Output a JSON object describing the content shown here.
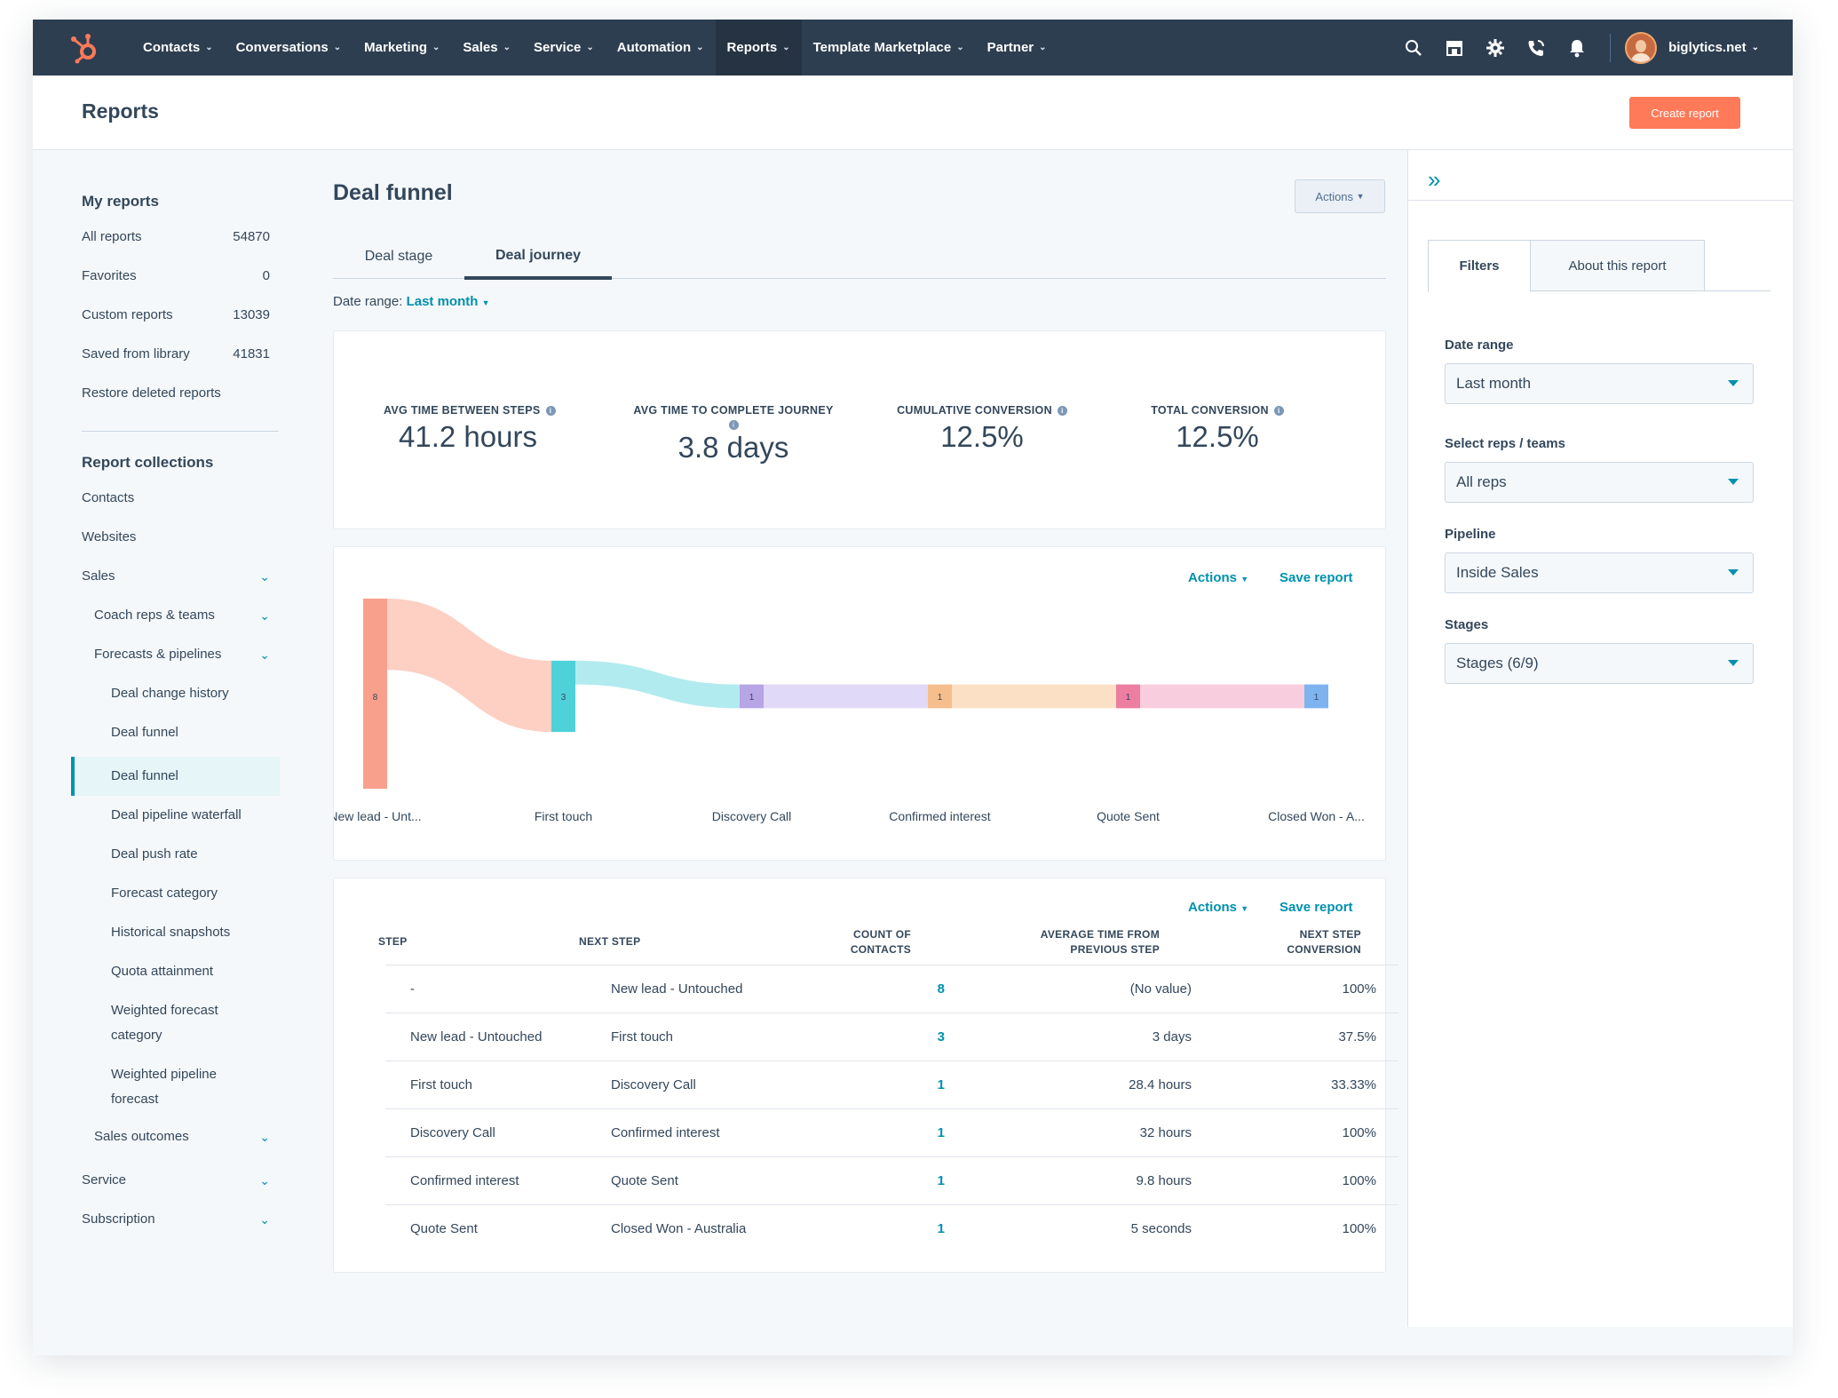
{
  "nav": {
    "items": [
      {
        "label": "Contacts"
      },
      {
        "label": "Conversations"
      },
      {
        "label": "Marketing"
      },
      {
        "label": "Sales"
      },
      {
        "label": "Service"
      },
      {
        "label": "Automation"
      },
      {
        "label": "Reports"
      },
      {
        "label": "Template Marketplace"
      },
      {
        "label": "Partner"
      }
    ],
    "active": "Reports",
    "account": "biglytics.net",
    "icons": [
      "search-icon",
      "marketplace-icon",
      "gear-icon",
      "calling-icon",
      "notifications-icon"
    ]
  },
  "header": {
    "title": "Reports",
    "create_button": "Create report"
  },
  "sidebar": {
    "my_reports_title": "My reports",
    "my_reports": [
      {
        "label": "All reports",
        "count": "54870"
      },
      {
        "label": "Favorites",
        "count": "0"
      },
      {
        "label": "Custom reports",
        "count": "13039"
      },
      {
        "label": "Saved from library",
        "count": "41831"
      },
      {
        "label": "Restore deleted reports",
        "count": ""
      }
    ],
    "collections_title": "Report collections",
    "collections": [
      {
        "label": "Contacts"
      },
      {
        "label": "Websites"
      },
      {
        "label": "Sales"
      },
      {
        "label": "Coach reps & teams"
      },
      {
        "label": "Forecasts & pipelines"
      },
      {
        "label": "Deal change history"
      },
      {
        "label": "Deal funnel"
      },
      {
        "label": "Deal funnel"
      },
      {
        "label": "Deal pipeline waterfall"
      },
      {
        "label": "Deal push rate"
      },
      {
        "label": "Forecast category"
      },
      {
        "label": "Historical snapshots"
      },
      {
        "label": "Quota attainment"
      },
      {
        "label": "Weighted forecast category"
      },
      {
        "label": "Weighted pipeline forecast"
      },
      {
        "label": "Sales outcomes"
      },
      {
        "label": "Service"
      },
      {
        "label": "Subscription"
      }
    ]
  },
  "main": {
    "title": "Deal funnel",
    "actions": "Actions",
    "tabs": [
      {
        "label": "Deal stage"
      },
      {
        "label": "Deal journey"
      }
    ],
    "active_tab": "Deal journey",
    "date_range_label": "Date range:",
    "date_range_value": "Last month",
    "kpis": [
      {
        "label": "AVG TIME BETWEEN STEPS",
        "value": "41.2 hours"
      },
      {
        "label": "AVG TIME TO COMPLETE JOURNEY",
        "value": "3.8 days"
      },
      {
        "label": "CUMULATIVE CONVERSION",
        "value": "12.5%"
      },
      {
        "label": "TOTAL CONVERSION",
        "value": "12.5%"
      }
    ],
    "chart_actions": "Actions",
    "save_report": "Save report",
    "table_actions": "Actions",
    "table_save_report": "Save report"
  },
  "chart_data": {
    "type": "sankey",
    "stages": [
      "New lead - Unt...",
      "First touch",
      "Discovery Call",
      "Confirmed interest",
      "Quote Sent",
      "Closed Won - A..."
    ],
    "values": [
      8,
      3,
      1,
      1,
      1,
      1
    ],
    "node_colors": [
      "#f8a08b",
      "#4fd1d9",
      "#b7a5e6",
      "#f5be8c",
      "#ec7ea2",
      "#7eb3f0"
    ],
    "flow_colors": [
      "#fdd0c3",
      "#b2ebef",
      "#e1d9f8",
      "#fce0c5",
      "#f8cede"
    ]
  },
  "table": {
    "headers": {
      "step": "STEP",
      "next_step": "NEXT STEP",
      "count_l1": "COUNT OF",
      "count_l2": "CONTACTS",
      "avg_l1": "AVERAGE TIME FROM",
      "avg_l2": "PREVIOUS STEP",
      "conv_l1": "NEXT STEP",
      "conv_l2": "CONVERSION"
    },
    "rows": [
      {
        "step": "-",
        "next": "New lead - Untouched",
        "count": "8",
        "avg": "(No value)",
        "conv": "100%"
      },
      {
        "step": "New lead - Untouched",
        "next": "First touch",
        "count": "3",
        "avg": "3 days",
        "conv": "37.5%"
      },
      {
        "step": "First touch",
        "next": "Discovery Call",
        "count": "1",
        "avg": "28.4 hours",
        "conv": "33.33%"
      },
      {
        "step": "Discovery Call",
        "next": "Confirmed interest",
        "count": "1",
        "avg": "32 hours",
        "conv": "100%"
      },
      {
        "step": "Confirmed interest",
        "next": "Quote Sent",
        "count": "1",
        "avg": "9.8 hours",
        "conv": "100%"
      },
      {
        "step": "Quote Sent",
        "next": "Closed Won - Australia",
        "count": "1",
        "avg": "5 seconds",
        "conv": "100%"
      }
    ]
  },
  "right_panel": {
    "tabs": [
      {
        "label": "Filters"
      },
      {
        "label": "About this report"
      }
    ],
    "filters": [
      {
        "label": "Date range",
        "value": "Last month"
      },
      {
        "label": "Select reps / teams",
        "value": "All reps"
      },
      {
        "label": "Pipeline",
        "value": "Inside Sales"
      },
      {
        "label": "Stages",
        "value": "Stages (6/9)"
      }
    ]
  },
  "colors": {
    "nav_bg": "#2d3e50",
    "accent": "#0091ae",
    "create_button": "#ff7a59"
  }
}
